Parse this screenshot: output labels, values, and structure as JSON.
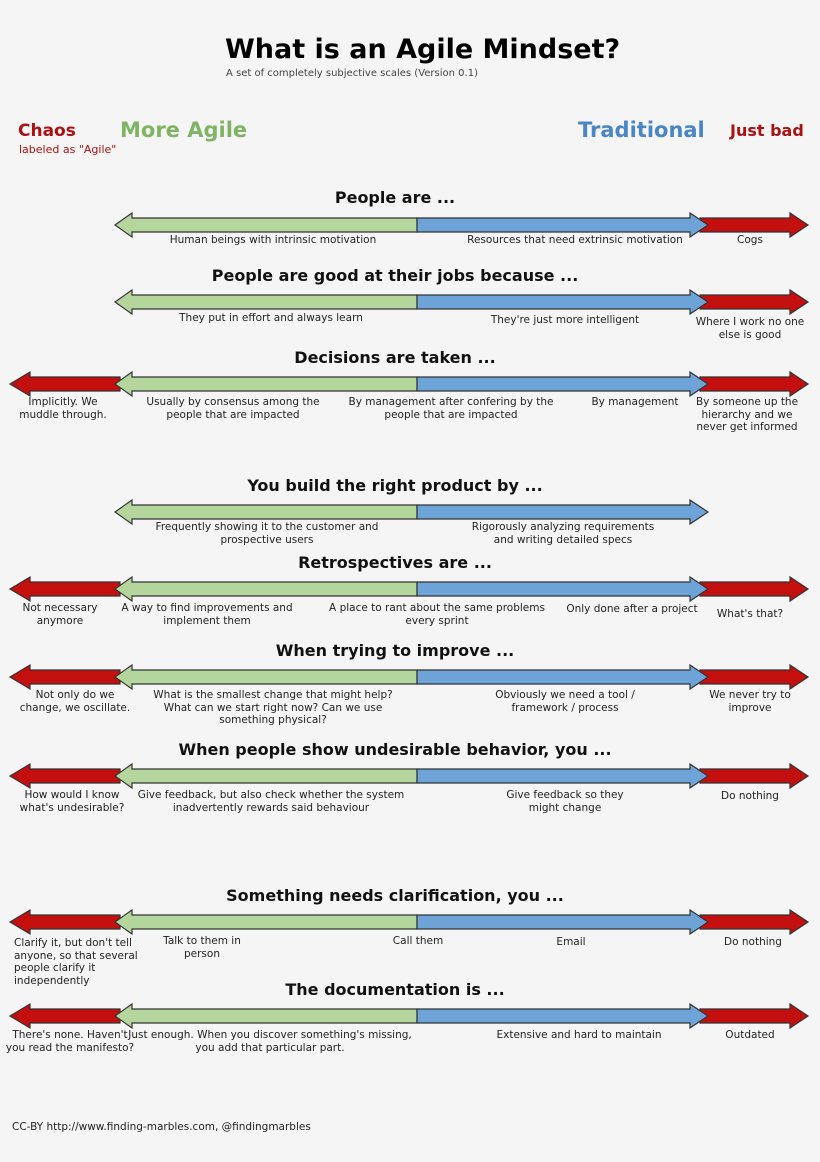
{
  "header": {
    "title": "What is an Agile Mindset?",
    "subtitle": "A set of completely subjective scales (Version 0.1)"
  },
  "legend": {
    "chaos": "Chaos",
    "chaos_note": "labeled as \"Agile\"",
    "agile": "More Agile",
    "traditional": "Traditional",
    "just_bad": "Just bad"
  },
  "scales": [
    {
      "title": "People are ...",
      "labels": [
        "Human beings with intrinsic motivation",
        "Resources that need extrinsic motivation",
        "Cogs"
      ]
    },
    {
      "title": "People are good at their jobs because ...",
      "labels": [
        "They put in effort and always learn",
        "They're just more intelligent",
        "Where I work no one\nelse is good"
      ]
    },
    {
      "title": "Decisions are taken ...",
      "labels": [
        "Implicitly. We\nmuddle through.",
        "Usually by consensus among the\npeople that are impacted",
        "By management after confering by the\npeople that are impacted",
        "By management",
        "By someone up the\nhierarchy and we\nnever get informed"
      ]
    },
    {
      "title": "You build the right product by ...",
      "labels": [
        "Frequently showing it to the customer and\nprospective users",
        "Rigorously analyzing requirements\nand writing detailed specs"
      ]
    },
    {
      "title": "Retrospectives are ...",
      "labels": [
        "Not necessary\nanymore",
        "A way to find improvements and\nimplement them",
        "A place to rant about the same problems\nevery sprint",
        "Only done after a project",
        "What's that?"
      ]
    },
    {
      "title": "When trying to improve ...",
      "labels": [
        "Not only do we\nchange, we oscillate.",
        "What is the smallest change that might help?\nWhat can we start right now? Can we use\nsomething physical?",
        "Obviously we need a tool /\nframework / process",
        "We never try to\nimprove"
      ]
    },
    {
      "title": "When people show undesirable behavior, you ...",
      "labels": [
        "How would I know\nwhat's undesirable?",
        "Give feedback, but also check whether the system\ninadvertently rewards said behaviour",
        "Give feedback so they\nmight change",
        "Do nothing"
      ]
    },
    {
      "title": "Something needs clarification, you ...",
      "labels": [
        "Clarify it, but don't tell\nanyone, so that several\npeople clarify it\nindependently",
        "Talk to them in\nperson",
        "Call them",
        "Email",
        "Do nothing"
      ]
    },
    {
      "title": "The documentation is ...",
      "labels": [
        "There's none. Haven't\nyou read the manifesto?",
        "Just enough. When you discover something's missing,\nyou add that particular part.",
        "Extensive and hard to maintain",
        "Outdated"
      ]
    }
  ],
  "footer": "CC-BY http://www.finding-marbles.com, @findingmarbles"
}
